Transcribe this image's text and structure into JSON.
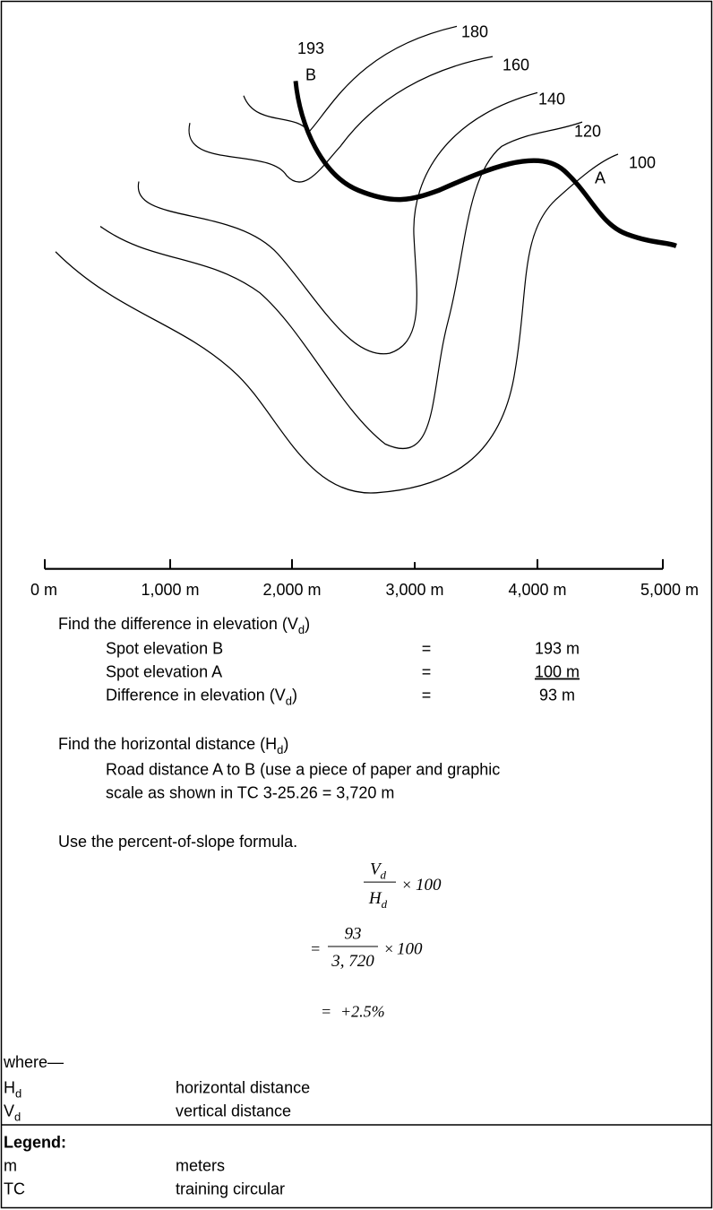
{
  "map": {
    "spot_b": {
      "elevation": "193",
      "name": "B"
    },
    "spot_a": {
      "name": "A"
    },
    "contours": [
      "180",
      "160",
      "140",
      "120",
      "100"
    ]
  },
  "scale": [
    "0 m",
    "1,000 m",
    "2,000 m",
    "3,000 m",
    "4,000 m",
    "5,000 m"
  ],
  "section1": {
    "heading": "Find the difference in elevation (V",
    "heading_sub": "d",
    "heading_end": ")",
    "rows": [
      {
        "label": "Spot elevation B",
        "eq": "=",
        "value": "193 m"
      },
      {
        "label": "Spot elevation A",
        "eq": "=",
        "value": "100 m"
      },
      {
        "label": "Difference in elevation (V",
        "label_sub": "d",
        "label_end": ")",
        "eq": "=",
        "value": "93 m"
      }
    ]
  },
  "section2": {
    "heading": "Find the horizontal distance (H",
    "heading_sub": "d",
    "heading_end": ")",
    "lines": [
      "Road distance A to B (use a piece of paper and graphic",
      "scale as shown in TC 3-25.26 = 3,720 m"
    ]
  },
  "section3": {
    "heading": "Use the percent-of-slope formula.",
    "formula": {
      "line1": {
        "num": "V",
        "num_sub": "d",
        "den": "H",
        "den_sub": "d",
        "op": "×",
        "factor": "100"
      },
      "line2": {
        "eq": "=",
        "num": "93",
        "den": "3, 720",
        "op": "×",
        "factor": "100"
      },
      "line3": {
        "eq": "=",
        "result": "+2.5%"
      }
    }
  },
  "where": {
    "label": "where—",
    "terms": [
      {
        "symbol": "H",
        "sub": "d",
        "meaning": "horizontal distance"
      },
      {
        "symbol": "V",
        "sub": "d",
        "meaning": "vertical distance"
      }
    ]
  },
  "legend": {
    "title": "Legend:",
    "terms": [
      {
        "symbol": "m",
        "meaning": "meters"
      },
      {
        "symbol": "TC",
        "meaning": "training circular"
      }
    ]
  }
}
